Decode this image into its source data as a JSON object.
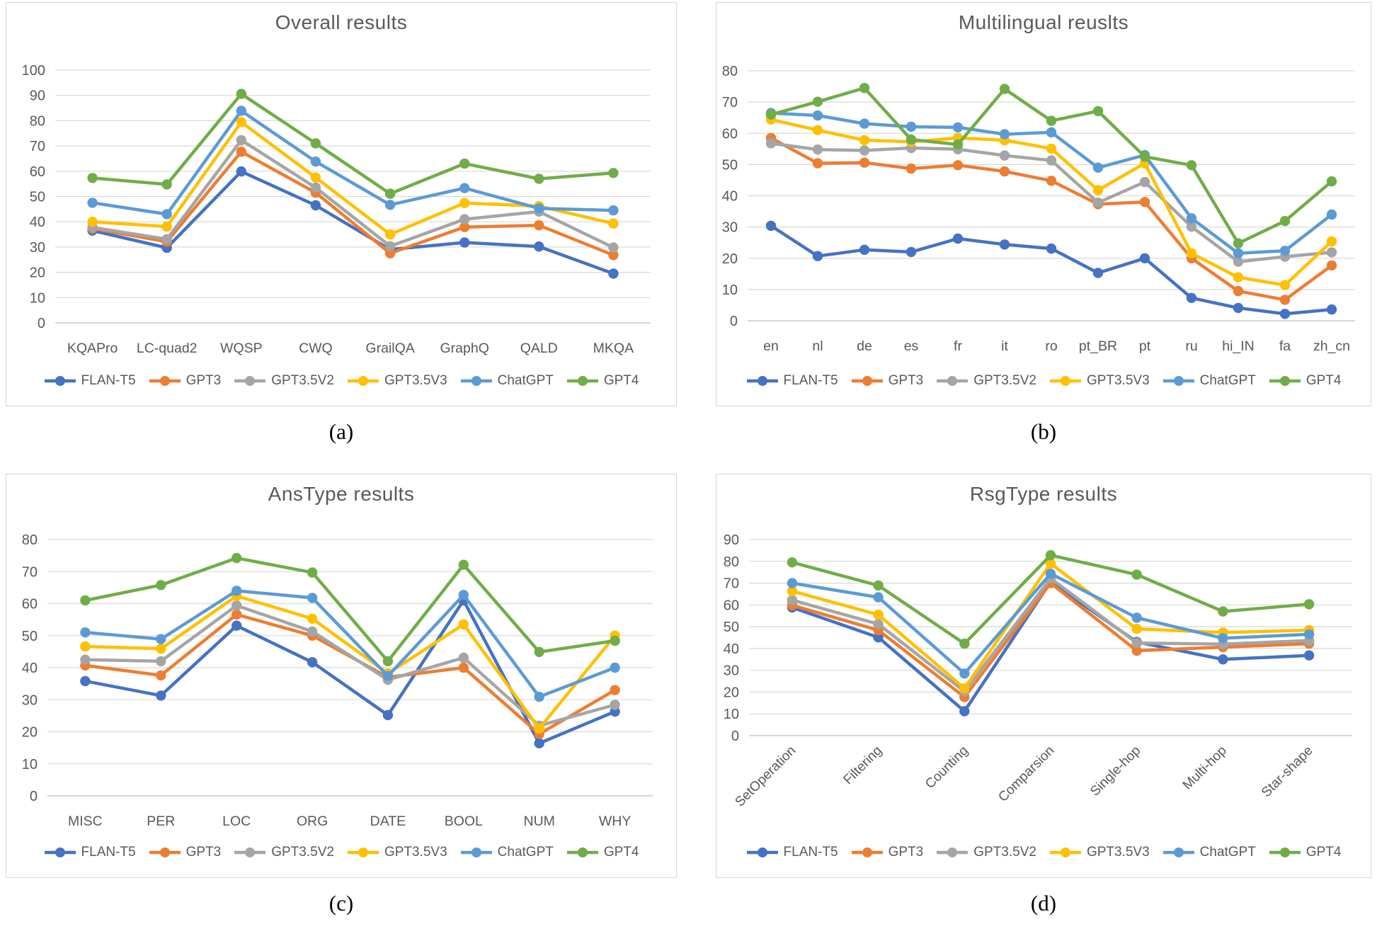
{
  "figure": {
    "captions": [
      "(a)",
      "(b)",
      "(c)",
      "(d)"
    ],
    "palette": {
      "FLAN-T5": "#4472C4",
      "GPT3": "#ED7D31",
      "GPT3.5V2": "#A5A5A5",
      "GPT3.5V3": "#FFC000",
      "ChatGPT": "#5B9BD5",
      "GPT4": "#70AD47"
    },
    "grid_color": "#D9D9D9",
    "axis_color": "#BFBFBF",
    "text_color": "#595959"
  },
  "legend": {
    "items": [
      {
        "label": "FLAN-T5",
        "color": "#4472C4"
      },
      {
        "label": "GPT3",
        "color": "#ED7D31"
      },
      {
        "label": "GPT3.5V2",
        "color": "#A5A5A5"
      },
      {
        "label": "GPT3.5V3",
        "color": "#FFC000"
      },
      {
        "label": "ChatGPT",
        "color": "#5B9BD5"
      },
      {
        "label": "GPT4",
        "color": "#70AD47"
      }
    ]
  },
  "chart_data": [
    {
      "type": "line",
      "title": "Overall results",
      "categories": [
        "KQAPro",
        "LC-quad2",
        "WQSP",
        "CWQ",
        "GrailQA",
        "GraphQ",
        "QALD",
        "MKQA"
      ],
      "series": [
        {
          "name": "FLAN-T5",
          "values": [
            36.5,
            29.7,
            59.9,
            46.5,
            29.0,
            31.8,
            30.2,
            19.5
          ]
        },
        {
          "name": "GPT3",
          "values": [
            37.3,
            32.1,
            67.7,
            51.5,
            27.5,
            37.9,
            38.6,
            26.8
          ]
        },
        {
          "name": "GPT3.5V2",
          "values": [
            37.8,
            33.1,
            72.3,
            53.5,
            30.3,
            41.0,
            44.0,
            29.8
          ]
        },
        {
          "name": "GPT3.5V3",
          "values": [
            40.0,
            38.1,
            79.4,
            57.5,
            35.0,
            47.4,
            46.2,
            39.3
          ]
        },
        {
          "name": "ChatGPT",
          "values": [
            47.5,
            43.0,
            83.9,
            63.8,
            46.7,
            53.3,
            45.3,
            44.5
          ]
        },
        {
          "name": "GPT4",
          "values": [
            57.3,
            54.8,
            90.6,
            71.0,
            51.1,
            63.0,
            57.0,
            59.3
          ]
        }
      ],
      "ylim": [
        0,
        100
      ],
      "yticks": [
        0,
        10,
        20,
        30,
        40,
        50,
        60,
        70,
        80,
        90,
        100
      ],
      "grid": true,
      "legend_position": "bottom",
      "x_label_rotation": 0
    },
    {
      "type": "line",
      "title": "Multilingual reuslts",
      "categories": [
        "en",
        "nl",
        "de",
        "es",
        "fr",
        "it",
        "ro",
        "pt_BR",
        "pt",
        "ru",
        "hi_IN",
        "fa",
        "zh_cn"
      ],
      "series": [
        {
          "name": "FLAN-T5",
          "values": [
            30.4,
            20.7,
            22.7,
            22.0,
            26.3,
            24.4,
            23.1,
            15.3,
            20.0,
            7.3,
            4.1,
            2.2,
            3.6
          ]
        },
        {
          "name": "GPT3",
          "values": [
            58.5,
            50.4,
            50.6,
            48.7,
            49.8,
            47.8,
            44.8,
            37.3,
            38.0,
            20.0,
            9.5,
            6.7,
            17.7
          ]
        },
        {
          "name": "GPT3.5V2",
          "values": [
            56.8,
            54.8,
            54.5,
            55.3,
            54.9,
            52.9,
            51.3,
            37.8,
            44.4,
            30.1,
            18.9,
            20.5,
            21.9
          ]
        },
        {
          "name": "GPT3.5V3",
          "values": [
            64.4,
            61.0,
            57.8,
            57.3,
            58.5,
            57.8,
            55.1,
            41.8,
            50.4,
            21.6,
            13.9,
            11.4,
            25.4
          ]
        },
        {
          "name": "ChatGPT",
          "values": [
            66.5,
            65.7,
            63.1,
            62.1,
            61.9,
            59.7,
            60.3,
            49.0,
            53.0,
            32.8,
            21.6,
            22.4,
            34.0
          ]
        },
        {
          "name": "GPT4",
          "values": [
            66.0,
            70.1,
            74.5,
            58.0,
            56.4,
            74.2,
            64.0,
            67.1,
            52.5,
            49.8,
            24.8,
            31.9,
            44.6
          ]
        }
      ],
      "ylim": [
        0,
        80
      ],
      "yticks": [
        0,
        10,
        20,
        30,
        40,
        50,
        60,
        70,
        80
      ],
      "grid": true,
      "legend_position": "bottom",
      "x_label_rotation": 0
    },
    {
      "type": "line",
      "title": "AnsType results",
      "categories": [
        "MISC",
        "PER",
        "LOC",
        "ORG",
        "DATE",
        "BOOL",
        "NUM",
        "WHY"
      ],
      "series": [
        {
          "name": "FLAN-T5",
          "values": [
            35.8,
            31.3,
            53.1,
            41.7,
            25.2,
            61.0,
            16.4,
            26.3
          ]
        },
        {
          "name": "GPT3",
          "values": [
            40.7,
            37.6,
            56.6,
            50.0,
            37.0,
            40.0,
            19.3,
            33.0
          ]
        },
        {
          "name": "GPT3.5V2",
          "values": [
            42.5,
            42.0,
            59.4,
            51.3,
            36.2,
            43.1,
            21.9,
            28.4
          ]
        },
        {
          "name": "GPT3.5V3",
          "values": [
            46.6,
            45.9,
            62.4,
            55.3,
            38.2,
            53.5,
            21.0,
            50.0
          ]
        },
        {
          "name": "ChatGPT",
          "values": [
            51.0,
            48.9,
            64.0,
            61.8,
            37.4,
            62.7,
            30.9,
            40.0
          ]
        },
        {
          "name": "GPT4",
          "values": [
            61.0,
            65.8,
            74.2,
            69.7,
            42.0,
            72.1,
            44.9,
            48.4
          ]
        }
      ],
      "ylim": [
        0,
        80
      ],
      "yticks": [
        0,
        10,
        20,
        30,
        40,
        50,
        60,
        70,
        80
      ],
      "grid": true,
      "legend_position": "bottom",
      "x_label_rotation": 0
    },
    {
      "type": "line",
      "title": "RsgType results",
      "categories": [
        "SetOperation",
        "Filtering",
        "Counting",
        "Comparsion",
        "Single-hop",
        "Multi-hop",
        "Star-shape"
      ],
      "series": [
        {
          "name": "FLAN-T5",
          "values": [
            58.8,
            45.1,
            11.2,
            70.5,
            43.0,
            35.0,
            36.8
          ]
        },
        {
          "name": "GPT3",
          "values": [
            59.8,
            48.4,
            17.7,
            70.0,
            39.0,
            40.6,
            42.2
          ]
        },
        {
          "name": "GPT3.5V2",
          "values": [
            62.2,
            51.2,
            20.3,
            72.2,
            42.5,
            42.0,
            43.6
          ]
        },
        {
          "name": "GPT3.5V3",
          "values": [
            66.3,
            55.5,
            21.7,
            79.0,
            49.0,
            47.3,
            48.4
          ]
        },
        {
          "name": "ChatGPT",
          "values": [
            70.0,
            63.5,
            28.5,
            74.3,
            54.1,
            44.7,
            46.5
          ]
        },
        {
          "name": "GPT4",
          "values": [
            79.5,
            68.9,
            42.2,
            82.8,
            73.9,
            57.0,
            60.3
          ]
        }
      ],
      "ylim": [
        0,
        90
      ],
      "yticks": [
        0,
        10,
        20,
        30,
        40,
        50,
        60,
        70,
        80,
        90
      ],
      "grid": true,
      "legend_position": "bottom",
      "x_label_rotation": 45
    }
  ]
}
